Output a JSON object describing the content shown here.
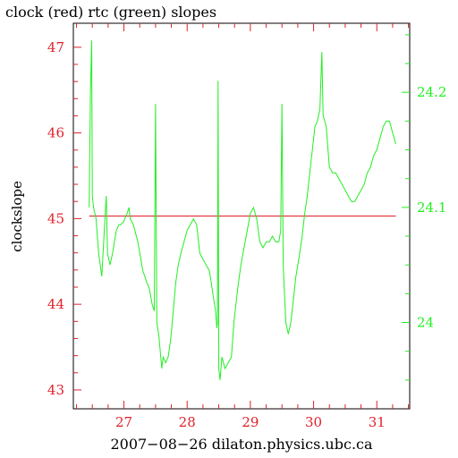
{
  "chart_data": {
    "type": "line",
    "title": "clock (red) rtc (green) slopes",
    "xlabel": "2007−08−26 dilaton.physics.ubc.ca",
    "ylabel": "clockslope",
    "xlim": [
      26.2,
      31.52
    ],
    "ylim_left": [
      42.78,
      47.28
    ],
    "ylim_right": [
      23.925,
      24.26
    ],
    "x_ticks": [
      27,
      28,
      29,
      30,
      31
    ],
    "x_tick_labels": [
      "27",
      "28",
      "29",
      "30",
      "31"
    ],
    "y_left_ticks": [
      43,
      44,
      45,
      46,
      47
    ],
    "y_left_tick_labels": [
      "43",
      "44",
      "45",
      "46",
      "47"
    ],
    "y_right_ticks": [
      24,
      24.1,
      24.2
    ],
    "y_right_tick_labels": [
      "24",
      "24.1",
      "24.2"
    ],
    "colors": {
      "clock": "#e0202a",
      "rtc": "#22ee22",
      "axes": "#000000"
    },
    "series": [
      {
        "axis": "left",
        "color": "#e0202a",
        "points": [
          [
            26.45,
            45.03
          ],
          [
            31.3,
            45.03
          ]
        ]
      },
      {
        "axis": "right",
        "color": "#22ee22",
        "points": [
          [
            26.45,
            24.1
          ],
          [
            26.47,
            24.2
          ],
          [
            26.49,
            24.245
          ],
          [
            26.5,
            24.11
          ],
          [
            26.52,
            24.1
          ],
          [
            26.56,
            24.09
          ],
          [
            26.6,
            24.06
          ],
          [
            26.65,
            24.04
          ],
          [
            26.7,
            24.09
          ],
          [
            26.72,
            24.11
          ],
          [
            26.74,
            24.06
          ],
          [
            26.78,
            24.05
          ],
          [
            26.82,
            24.06
          ],
          [
            26.88,
            24.08
          ],
          [
            26.92,
            24.085
          ],
          [
            26.95,
            24.085
          ],
          [
            27.0,
            24.088
          ],
          [
            27.05,
            24.095
          ],
          [
            27.08,
            24.1
          ],
          [
            27.1,
            24.09
          ],
          [
            27.15,
            24.085
          ],
          [
            27.22,
            24.07
          ],
          [
            27.3,
            24.045
          ],
          [
            27.36,
            24.035
          ],
          [
            27.4,
            24.03
          ],
          [
            27.45,
            24.015
          ],
          [
            27.48,
            24.01
          ],
          [
            27.5,
            24.19
          ],
          [
            27.52,
            24.0
          ],
          [
            27.55,
            23.99
          ],
          [
            27.6,
            23.96
          ],
          [
            27.62,
            23.97
          ],
          [
            27.66,
            23.965
          ],
          [
            27.7,
            23.97
          ],
          [
            27.74,
            23.985
          ],
          [
            27.78,
            24.01
          ],
          [
            27.82,
            24.035
          ],
          [
            27.86,
            24.05
          ],
          [
            27.9,
            24.06
          ],
          [
            27.95,
            24.07
          ],
          [
            28.0,
            24.08
          ],
          [
            28.05,
            24.085
          ],
          [
            28.1,
            24.09
          ],
          [
            28.15,
            24.085
          ],
          [
            28.2,
            24.06
          ],
          [
            28.25,
            24.055
          ],
          [
            28.3,
            24.05
          ],
          [
            28.35,
            24.045
          ],
          [
            28.38,
            24.035
          ],
          [
            28.42,
            24.02
          ],
          [
            28.45,
            24.01
          ],
          [
            28.47,
            23.995
          ],
          [
            28.48,
            24.0
          ],
          [
            28.49,
            24.21
          ],
          [
            28.5,
            23.96
          ],
          [
            28.52,
            23.95
          ],
          [
            28.55,
            23.97
          ],
          [
            28.6,
            23.96
          ],
          [
            28.65,
            23.965
          ],
          [
            28.7,
            23.97
          ],
          [
            28.74,
            24.0
          ],
          [
            28.8,
            24.03
          ],
          [
            28.85,
            24.05
          ],
          [
            28.9,
            24.065
          ],
          [
            28.95,
            24.08
          ],
          [
            29.0,
            24.095
          ],
          [
            29.05,
            24.1
          ],
          [
            29.1,
            24.09
          ],
          [
            29.15,
            24.07
          ],
          [
            29.2,
            24.065
          ],
          [
            29.25,
            24.07
          ],
          [
            29.3,
            24.07
          ],
          [
            29.35,
            24.075
          ],
          [
            29.4,
            24.07
          ],
          [
            29.45,
            24.07
          ],
          [
            29.48,
            24.08
          ],
          [
            29.5,
            24.19
          ],
          [
            29.52,
            24.05
          ],
          [
            29.56,
            24.0
          ],
          [
            29.6,
            23.99
          ],
          [
            29.64,
            24.0
          ],
          [
            29.68,
            24.02
          ],
          [
            29.72,
            24.04
          ],
          [
            29.78,
            24.06
          ],
          [
            29.82,
            24.075
          ],
          [
            29.86,
            24.095
          ],
          [
            29.9,
            24.11
          ],
          [
            29.94,
            24.13
          ],
          [
            29.98,
            24.15
          ],
          [
            30.02,
            24.17
          ],
          [
            30.06,
            24.175
          ],
          [
            30.1,
            24.185
          ],
          [
            30.13,
            24.235
          ],
          [
            30.15,
            24.18
          ],
          [
            30.2,
            24.17
          ],
          [
            30.25,
            24.135
          ],
          [
            30.3,
            24.13
          ],
          [
            30.35,
            24.13
          ],
          [
            30.4,
            24.125
          ],
          [
            30.45,
            24.12
          ],
          [
            30.5,
            24.115
          ],
          [
            30.55,
            24.11
          ],
          [
            30.6,
            24.105
          ],
          [
            30.65,
            24.105
          ],
          [
            30.7,
            24.11
          ],
          [
            30.75,
            24.115
          ],
          [
            30.8,
            24.12
          ],
          [
            30.85,
            24.13
          ],
          [
            30.9,
            24.135
          ],
          [
            30.95,
            24.145
          ],
          [
            31.0,
            24.15
          ],
          [
            31.05,
            24.16
          ],
          [
            31.1,
            24.17
          ],
          [
            31.15,
            24.175
          ],
          [
            31.2,
            24.175
          ],
          [
            31.25,
            24.165
          ],
          [
            31.3,
            24.155
          ]
        ]
      }
    ]
  }
}
